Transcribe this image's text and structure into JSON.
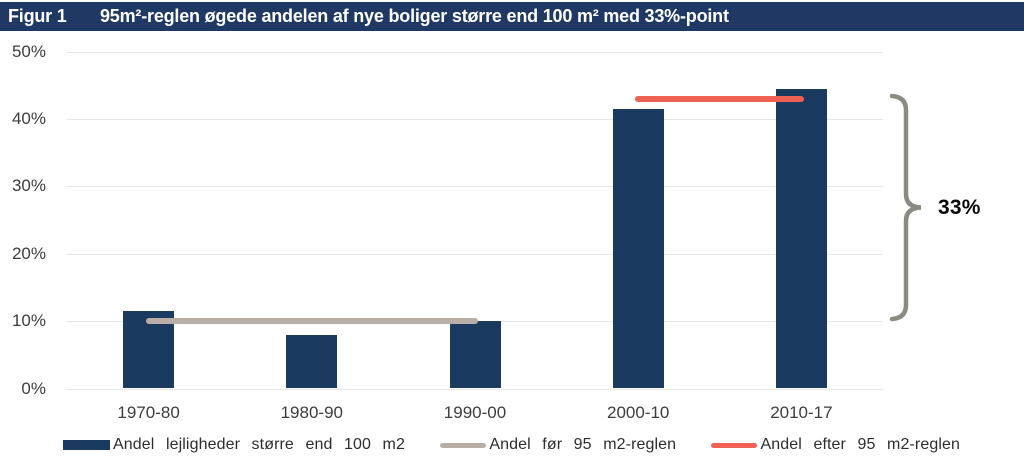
{
  "header": {
    "figure_label": "Figur 1",
    "title": "95m²-reglen øgede andelen af nye boliger større end 100 m² med 33%-point",
    "bg_color": "#1f3864",
    "text_color": "#ffffff"
  },
  "chart_data": {
    "type": "bar",
    "title": "95m²-reglen øgede andelen af nye boliger større end 100 m² med 33%-point",
    "categories": [
      "1970-80",
      "1980-90",
      "1990-00",
      "2000-10",
      "2010-17"
    ],
    "series": [
      {
        "name": "Andel lejligheder større end 100 m2",
        "kind": "bar",
        "values": [
          11.5,
          8,
          10,
          41.5,
          44.5
        ],
        "color": "#1b3a60"
      },
      {
        "name": "Andel før 95 m2-reglen",
        "kind": "line",
        "span": [
          0,
          2
        ],
        "value": 10,
        "color": "#b9aea6"
      },
      {
        "name": "Andel efter 95 m2-reglen",
        "kind": "line",
        "span": [
          3,
          4
        ],
        "value": 43,
        "color": "#ef6153"
      }
    ],
    "xlabel": "",
    "ylabel": "",
    "ylim": [
      0,
      50
    ],
    "yticks": [
      "0%",
      "10%",
      "20%",
      "30%",
      "40%",
      "50%"
    ],
    "grid": true,
    "legend_position": "bottom",
    "annotation": {
      "text": "33%",
      "meaning": "forskel mellem andel før og efter 95 m2-reglen",
      "brace_color": "#8b8b82"
    },
    "grid_color": "#e7e7e7",
    "tick_text_color": "#3d3d3d"
  }
}
